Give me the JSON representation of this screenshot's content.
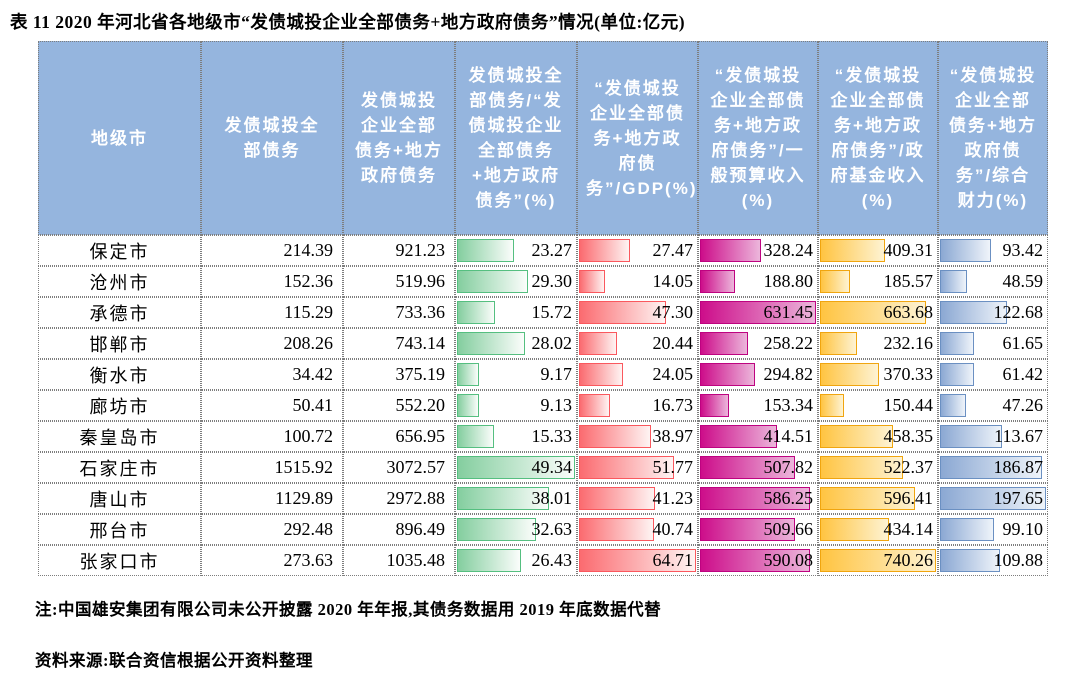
{
  "title": "表 11   2020 年河北省各地级市“发债城投企业全部债务+地方政府债务”情况(单位:亿元)",
  "table": {
    "header": [
      "地级市",
      "发债城投全部债务",
      "发债城投企业全部债务+地方政府债务",
      "发债城投全部债务/“发债城投企业全部债务+地方政府债务”(%)",
      "“发债城投企业全部债务+地方政府债务”/GDP(%)",
      "“发债城投企业全部债务+地方政府债务”/一般预算收入(%)",
      "“发债城投企业全部债务+地方政府债务”/政府基金收入(%)",
      "“发债城投企业全部债务+地方政府债务”/综合财力(%)"
    ],
    "rows": [
      [
        "保定市",
        "214.39",
        "921.23",
        "23.27",
        "27.47",
        "328.24",
        "409.31",
        "93.42"
      ],
      [
        "沧州市",
        "152.36",
        "519.96",
        "29.30",
        "14.05",
        "188.80",
        "185.57",
        "48.59"
      ],
      [
        "承德市",
        "115.29",
        "733.36",
        "15.72",
        "47.30",
        "631.45",
        "663.68",
        "122.68"
      ],
      [
        "邯郸市",
        "208.26",
        "743.14",
        "28.02",
        "20.44",
        "258.22",
        "232.16",
        "61.65"
      ],
      [
        "衡水市",
        "34.42",
        "375.19",
        "9.17",
        "24.05",
        "294.82",
        "370.33",
        "61.42"
      ],
      [
        "廊坊市",
        "50.41",
        "552.20",
        "9.13",
        "16.73",
        "153.34",
        "150.44",
        "47.26"
      ],
      [
        "秦皇岛市",
        "100.72",
        "656.95",
        "15.33",
        "38.97",
        "414.51",
        "458.35",
        "113.67"
      ],
      [
        "石家庄市",
        "1515.92",
        "3072.57",
        "49.34",
        "51.77",
        "507.82",
        "522.37",
        "186.87"
      ],
      [
        "唐山市",
        "1129.89",
        "2972.88",
        "38.01",
        "41.23",
        "586.25",
        "596.41",
        "197.65"
      ],
      [
        "邢台市",
        "292.48",
        "896.49",
        "32.63",
        "40.74",
        "509.66",
        "434.14",
        "99.10"
      ],
      [
        "张家口市",
        "273.63",
        "1035.48",
        "26.43",
        "64.71",
        "590.08",
        "740.26",
        "109.88"
      ]
    ],
    "bar_columns": [
      3,
      4,
      5,
      6,
      7
    ],
    "bar_colors": {
      "3": {
        "name": "green-data-bar",
        "border": "#55BF80",
        "from": "#84CE9F",
        "to": "#FBFDFB"
      },
      "4": {
        "name": "red-data-bar",
        "border": "#FA585E",
        "from": "#FB6B70",
        "to": "#FEF4F3"
      },
      "5": {
        "name": "magenta-data-bar",
        "border": "#BE0380",
        "from": "#CD0D8A",
        "to": "#ECB6DB"
      },
      "6": {
        "name": "yellow-data-bar",
        "border": "#F0A50F",
        "from": "#FFC441",
        "to": "#FEF3D3"
      },
      "7": {
        "name": "blue-data-bar",
        "border": "#6B90C2",
        "from": "#8BA8D3",
        "to": "#EFF4FA"
      }
    },
    "header_bg": "#95B5DE",
    "header_text_color": "#FFFFFF"
  },
  "notes": {
    "note": "注:中国雄安集团有限公司未公开披露 2020 年年报,其债务数据用 2019 年底数据代替",
    "source": "资料来源:联合资信根据公开资料整理"
  }
}
